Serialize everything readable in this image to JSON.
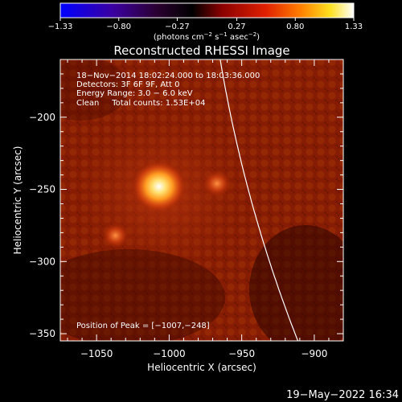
{
  "chart_data": {
    "type": "heatmap",
    "title": "Reconstructed RHESSI Image",
    "xlabel": "Heliocentric X (arcsec)",
    "ylabel": "Heliocentric Y (arcsec)",
    "xlim": [
      -1075,
      -880
    ],
    "ylim": [
      -355,
      -160
    ],
    "x_ticks": [
      -1050,
      -1000,
      -950,
      -900
    ],
    "x_tick_labels": [
      "−1050",
      "−1000",
      "−950",
      "−900"
    ],
    "y_ticks": [
      -200,
      -250,
      -300,
      -350
    ],
    "y_tick_labels": [
      "−200",
      "−250",
      "−300",
      "−350"
    ],
    "colorbar": {
      "min": -1.33,
      "max": 1.33,
      "ticks": [
        -1.33,
        -0.8,
        -0.27,
        0.27,
        0.8,
        1.33
      ],
      "tick_labels": [
        "−1.33",
        "−0.80",
        "−0.27",
        "0.27",
        "0.80",
        "1.33"
      ],
      "label_main": "(photons cm",
      "label_exp1": "−2",
      "label_mid1": " s",
      "label_exp2": "−1",
      "label_mid2": " asec",
      "label_exp3": "−2",
      "label_end": ")"
    },
    "sources": [
      {
        "x": -1007,
        "y": -248,
        "value": 1.33
      },
      {
        "x": -967,
        "y": -246,
        "value": 0.8
      },
      {
        "x": -1037,
        "y": -282,
        "value": 0.75
      }
    ],
    "annotations": [
      "18−Nov−2014 18:02:24.000 to 18:03:36.000",
      "Detectors: 3F 6F 9F, Att 0",
      "Energy Range: 3.0 − 6.0 keV",
      "Clean     Total counts: 1.53E+04"
    ],
    "peak_label": "Position of Peak = [−1007,−248]",
    "limb": true
  },
  "footer": {
    "date": "19−May−2022 16:34"
  },
  "colors": {
    "background": "#000000",
    "text": "#ffffff",
    "colormap": [
      "#0000ff",
      "#3a0070",
      "#000000",
      "#a00000",
      "#ff4000",
      "#ffc000",
      "#ffffff"
    ]
  }
}
